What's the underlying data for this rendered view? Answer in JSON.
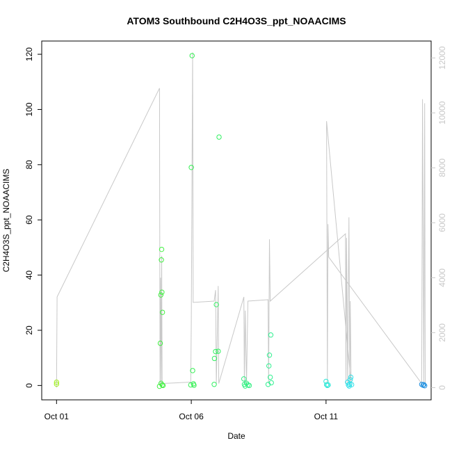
{
  "chart_data": {
    "type": "scatter",
    "title": "ATOM3 Southbound C2H4O3S_ppt_NOAACIMS",
    "xlabel": "Date",
    "ylabel": "C2H4O3S_ppt_NOAACIMS",
    "x_ticks": [
      "Oct 01",
      "Oct 06",
      "Oct 11"
    ],
    "x_tick_values": [
      0,
      5,
      10
    ],
    "xlim": [
      -0.55,
      13.9
    ],
    "y_ticks": [
      "0",
      "20",
      "40",
      "60",
      "80",
      "100",
      "120"
    ],
    "y_tick_values": [
      0,
      20,
      40,
      60,
      80,
      100,
      120
    ],
    "ylim": [
      -5.2,
      124.8
    ],
    "y2_ticks": [
      "0",
      "2000",
      "4000",
      "6000",
      "8000",
      "10000",
      "12000"
    ],
    "y2_tick_values": [
      0,
      2000,
      4000,
      6000,
      8000,
      10000,
      12000
    ],
    "y2lim": [
      -445,
      12615
    ],
    "grid": false,
    "axis_color": "#000000",
    "secondary_axis_color": "#c8c8c8",
    "series": [
      {
        "kind": "points",
        "marker": "open-circle",
        "points": [
          {
            "x": 0.0,
            "y": 1.2,
            "color": "#a0f020"
          },
          {
            "x": 0.0,
            "y": 0.5,
            "color": "#a0f020"
          },
          {
            "x": 3.82,
            "y": -0.3,
            "color": "#40f040"
          },
          {
            "x": 3.85,
            "y": 15.3,
            "color": "#40f040"
          },
          {
            "x": 3.87,
            "y": 32.8,
            "color": "#40f040"
          },
          {
            "x": 3.89,
            "y": 45.5,
            "color": "#40f040"
          },
          {
            "x": 3.9,
            "y": 49.3,
            "color": "#40f040"
          },
          {
            "x": 3.91,
            "y": 33.8,
            "color": "#40f040"
          },
          {
            "x": 3.93,
            "y": 26.5,
            "color": "#40f040"
          },
          {
            "x": 3.88,
            "y": 0.8,
            "color": "#40f040"
          },
          {
            "x": 3.92,
            "y": 0.2,
            "color": "#40f040"
          },
          {
            "x": 3.95,
            "y": 0.0,
            "color": "#40f040"
          },
          {
            "x": 4.98,
            "y": 0.2,
            "color": "#30f050"
          },
          {
            "x": 5.0,
            "y": 79.0,
            "color": "#30f050"
          },
          {
            "x": 5.03,
            "y": 119.5,
            "color": "#30f050"
          },
          {
            "x": 5.05,
            "y": 5.4,
            "color": "#30f050"
          },
          {
            "x": 5.08,
            "y": 0.6,
            "color": "#30f050"
          },
          {
            "x": 5.1,
            "y": 0.1,
            "color": "#30f050"
          },
          {
            "x": 5.85,
            "y": 0.4,
            "color": "#30f060"
          },
          {
            "x": 5.86,
            "y": 9.8,
            "color": "#30f060"
          },
          {
            "x": 5.9,
            "y": 12.3,
            "color": "#30f060"
          },
          {
            "x": 5.93,
            "y": 29.3,
            "color": "#30f060"
          },
          {
            "x": 6.0,
            "y": 12.4,
            "color": "#30f060"
          },
          {
            "x": 6.03,
            "y": 90.0,
            "color": "#30f060"
          },
          {
            "x": 6.95,
            "y": 2.4,
            "color": "#30f080"
          },
          {
            "x": 6.97,
            "y": 0.4,
            "color": "#30f080"
          },
          {
            "x": 7.0,
            "y": -0.2,
            "color": "#30f080"
          },
          {
            "x": 7.05,
            "y": 0.8,
            "color": "#30f080"
          },
          {
            "x": 7.1,
            "y": 0.2,
            "color": "#30f080"
          },
          {
            "x": 7.15,
            "y": 0.0,
            "color": "#30f080"
          },
          {
            "x": 7.85,
            "y": 0.4,
            "color": "#30f090"
          },
          {
            "x": 7.88,
            "y": 7.1,
            "color": "#30f090"
          },
          {
            "x": 7.9,
            "y": 11.0,
            "color": "#30f090"
          },
          {
            "x": 7.93,
            "y": 3.0,
            "color": "#30f090"
          },
          {
            "x": 7.95,
            "y": 18.3,
            "color": "#30f090"
          },
          {
            "x": 7.97,
            "y": 1.0,
            "color": "#30f090"
          },
          {
            "x": 10.0,
            "y": 1.5,
            "color": "#30e8d8"
          },
          {
            "x": 10.02,
            "y": 0.3,
            "color": "#30e8d8"
          },
          {
            "x": 10.05,
            "y": 0.0,
            "color": "#30e8d8"
          },
          {
            "x": 10.08,
            "y": 0.2,
            "color": "#30e8d8"
          },
          {
            "x": 10.8,
            "y": 1.2,
            "color": "#30e0e8"
          },
          {
            "x": 10.83,
            "y": 0.2,
            "color": "#30e0e8"
          },
          {
            "x": 10.86,
            "y": -0.2,
            "color": "#30e0e8"
          },
          {
            "x": 10.88,
            "y": 0.5,
            "color": "#30e0e8"
          },
          {
            "x": 10.9,
            "y": 2.1,
            "color": "#30e0e8"
          },
          {
            "x": 10.92,
            "y": 3.0,
            "color": "#30e0e8"
          },
          {
            "x": 10.95,
            "y": 0.3,
            "color": "#30e0e8"
          },
          {
            "x": 13.55,
            "y": 0.4,
            "color": "#2090e0"
          },
          {
            "x": 13.6,
            "y": 0.1,
            "color": "#2090e0"
          },
          {
            "x": 13.63,
            "y": 0.3,
            "color": "#2090e0"
          },
          {
            "x": 13.66,
            "y": -0.1,
            "color": "#2090e0"
          }
        ]
      },
      {
        "kind": "line",
        "axis": "right",
        "color": "#c8c8c8",
        "points": [
          [
            0.0,
            0
          ],
          [
            0.02,
            3300
          ],
          [
            3.82,
            10900
          ],
          [
            3.84,
            150
          ],
          [
            3.86,
            4000
          ],
          [
            3.88,
            150
          ],
          [
            3.9,
            4800
          ],
          [
            3.92,
            150
          ],
          [
            4.98,
            200
          ],
          [
            5.0,
            2400
          ],
          [
            5.05,
            12200
          ],
          [
            5.07,
            3100
          ],
          [
            5.85,
            3150
          ],
          [
            5.9,
            3550
          ],
          [
            5.93,
            150
          ],
          [
            6.0,
            3700
          ],
          [
            6.02,
            150
          ],
          [
            6.95,
            3300
          ],
          [
            6.97,
            150
          ],
          [
            7.0,
            2800
          ],
          [
            7.05,
            150
          ],
          [
            7.1,
            3150
          ],
          [
            7.85,
            3200
          ],
          [
            7.87,
            150
          ],
          [
            7.9,
            5400
          ],
          [
            7.93,
            3150
          ],
          [
            10.72,
            5600
          ],
          [
            10.74,
            150
          ],
          [
            10.76,
            5450
          ],
          [
            10.8,
            150
          ],
          [
            10.85,
            6200
          ],
          [
            10.88,
            150
          ],
          [
            10.9,
            3150
          ],
          [
            10.93,
            150
          ],
          [
            10.02,
            9700
          ],
          [
            10.05,
            150
          ],
          [
            10.07,
            5950
          ],
          [
            10.1,
            4750
          ],
          [
            13.55,
            150
          ],
          [
            13.58,
            10500
          ],
          [
            13.63,
            150
          ],
          [
            13.66,
            10350
          ],
          [
            13.68,
            150
          ]
        ]
      }
    ]
  }
}
